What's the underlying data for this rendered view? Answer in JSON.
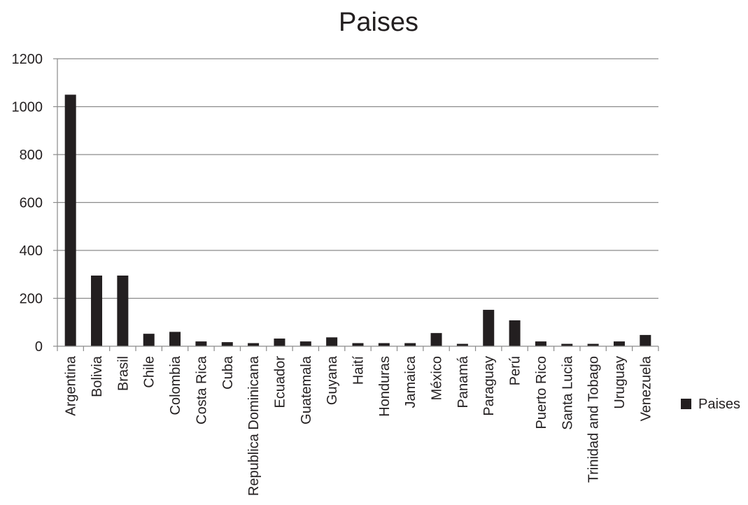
{
  "chart_data": {
    "type": "bar",
    "title": "Paises",
    "xlabel": "",
    "ylabel": "",
    "ylim": [
      0,
      1200
    ],
    "yticks": [
      0,
      200,
      400,
      600,
      800,
      1000,
      1200
    ],
    "grid": true,
    "legend_position": "right",
    "bar_color": "#231f20",
    "categories": [
      "Argentina",
      "Bolivia",
      "Brasil",
      "Chile",
      "Colombia",
      "Costa Rica",
      "Cuba",
      "Republica Dominicana",
      "Ecuador",
      "Guatemala",
      "Guyana",
      "Haití",
      "Honduras",
      "Jamaica",
      "México",
      "Panamá",
      "Paraguay",
      "Perú",
      "Puerto Rico",
      "Santa Lucia",
      "Trinidad and Tobago",
      "Uruguay",
      "Venezuela"
    ],
    "series": [
      {
        "name": "Paises",
        "values": [
          1050,
          295,
          295,
          52,
          60,
          20,
          17,
          13,
          32,
          20,
          37,
          13,
          13,
          13,
          55,
          10,
          152,
          108,
          20,
          10,
          10,
          20,
          47
        ]
      }
    ]
  }
}
